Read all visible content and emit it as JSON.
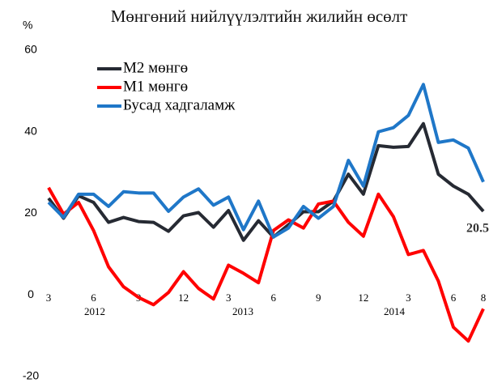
{
  "chart_data": {
    "type": "line",
    "title": "Мөнгөний  нийлүүлэлтийн жилийн өсөлт",
    "y_unit": "%",
    "categories": [
      "3",
      null,
      null,
      "6",
      null,
      null,
      "9",
      null,
      null,
      "12",
      null,
      null,
      "3",
      null,
      null,
      "6",
      null,
      null,
      "9",
      null,
      null,
      "12",
      null,
      null,
      "3",
      null,
      null,
      "6",
      null,
      "8"
    ],
    "years": [
      "2012",
      "2013",
      "2014"
    ],
    "series": [
      {
        "name": "М2 мөнгө",
        "color": "#262a33",
        "values": [
          23.7,
          18.8,
          24.3,
          22.7,
          17.8,
          19,
          18,
          17.8,
          15.6,
          19.4,
          20.2,
          16.6,
          20.7,
          13.4,
          18.2,
          14.2,
          17.2,
          20.4,
          20.4,
          23,
          29.6,
          24.7,
          36.6,
          36.2,
          36.4,
          42,
          29.6,
          26.7,
          24.7,
          20.5
        ]
      },
      {
        "name": "М1 мөнгө",
        "color": "#ff0000",
        "values": [
          26.3,
          19.8,
          22.7,
          15.8,
          6.9,
          2,
          -0.6,
          -2.4,
          0.6,
          5.7,
          1.6,
          -1,
          7.3,
          5.3,
          3,
          15.8,
          18.4,
          16.4,
          22.3,
          23,
          17.8,
          14.4,
          24.7,
          19.2,
          9.9,
          10.9,
          3.4,
          -7.9,
          -11.3,
          -3.4
        ]
      },
      {
        "name": "Бусад  хадгаламж",
        "color": "#1f77c8",
        "values": [
          22.7,
          19,
          24.7,
          24.7,
          21.7,
          25.3,
          25,
          25,
          20.5,
          24,
          26,
          22,
          24,
          16,
          23,
          14.2,
          16.4,
          21.7,
          18.8,
          21.7,
          33,
          26.7,
          40,
          41,
          44,
          51.6,
          37.4,
          38,
          36,
          27.7
        ]
      }
    ],
    "annotation": {
      "text": "20.5",
      "series": 0,
      "index": 29
    },
    "ylim": [
      -20,
      60
    ],
    "yticks": [
      -20,
      0,
      20,
      40,
      60
    ]
  }
}
